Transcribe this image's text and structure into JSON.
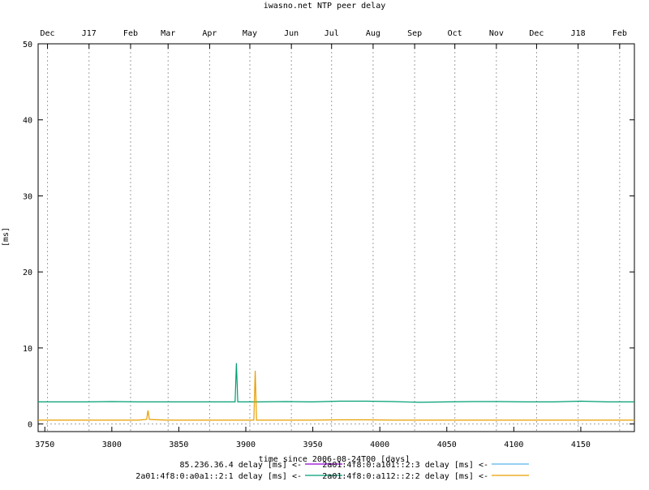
{
  "chart_data": {
    "type": "line",
    "title": "iwasno.net NTP peer delay",
    "xlabel": "time since 2006-08-24T00 [days]",
    "ylabel": "[ms]",
    "xlim": [
      3745,
      3790
    ],
    "ylim": [
      -1,
      50
    ],
    "x_ticks": [
      3750,
      3800,
      3850,
      3900,
      3950,
      4000,
      4050,
      4100,
      4150
    ],
    "y_ticks": [
      0,
      10,
      20,
      30,
      40,
      50
    ],
    "top_ticks": [
      {
        "x": 3752,
        "label": "Dec"
      },
      {
        "x": 3783,
        "label": "J17"
      },
      {
        "x": 3814,
        "label": "Feb"
      },
      {
        "x": 3842,
        "label": "Mar"
      },
      {
        "x": 3873,
        "label": "Apr"
      },
      {
        "x": 3903,
        "label": "May"
      },
      {
        "x": 3934,
        "label": "Jun"
      },
      {
        "x": 3964,
        "label": "Jul"
      },
      {
        "x": 3995,
        "label": "Aug"
      },
      {
        "x": 4026,
        "label": "Sep"
      },
      {
        "x": 4056,
        "label": "Oct"
      },
      {
        "x": 4087,
        "label": "Nov"
      },
      {
        "x": 4117,
        "label": "Dec"
      },
      {
        "x": 4148,
        "label": "J18"
      },
      {
        "x": 4179,
        "label": "Feb"
      }
    ],
    "grid": "vertical dashed at month ticks",
    "legend_position": "bottom",
    "series": [
      {
        "name": "85.236.36.4 delay [ms] <-",
        "color": "#9400d3",
        "x": [],
        "y": []
      },
      {
        "name": "2a01:4f8:0:a101::2:3 delay [ms] <-",
        "color": "#56b4e9",
        "x": [],
        "y": []
      },
      {
        "name": "2a01:4f8:0:a0a1::2:1 delay [ms] <-",
        "color": "#009e73",
        "x": [
          3745,
          3760,
          3780,
          3800,
          3820,
          3840,
          3860,
          3880,
          3892,
          3893,
          3894,
          3910,
          3930,
          3950,
          3970,
          3990,
          4010,
          4030,
          4050,
          4070,
          4090,
          4110,
          4130,
          4150,
          4170,
          4190
        ],
        "y": [
          2.9,
          2.9,
          2.9,
          2.95,
          2.9,
          2.9,
          2.9,
          2.9,
          2.9,
          8.0,
          2.9,
          2.9,
          2.95,
          2.9,
          3.0,
          3.0,
          2.95,
          2.85,
          2.9,
          2.95,
          2.95,
          2.9,
          2.9,
          3.0,
          2.9,
          2.9
        ]
      },
      {
        "name": "2a01:4f8:0:a112::2:2 delay [ms] <-",
        "color": "#e69f00",
        "x": [
          3745,
          3760,
          3780,
          3800,
          3820,
          3826,
          3827,
          3828,
          3840,
          3860,
          3880,
          3900,
          3906,
          3907,
          3908,
          3930,
          3950,
          3970,
          3990,
          4010,
          4030,
          4050,
          4070,
          4090,
          4110,
          4130,
          4150,
          4170,
          4190
        ],
        "y": [
          0.5,
          0.5,
          0.5,
          0.5,
          0.5,
          0.6,
          1.8,
          0.6,
          0.5,
          0.5,
          0.5,
          0.5,
          0.5,
          7.0,
          0.5,
          0.5,
          0.5,
          0.55,
          0.55,
          0.5,
          0.5,
          0.5,
          0.5,
          0.5,
          0.5,
          0.5,
          0.5,
          0.5,
          0.5
        ]
      }
    ]
  }
}
